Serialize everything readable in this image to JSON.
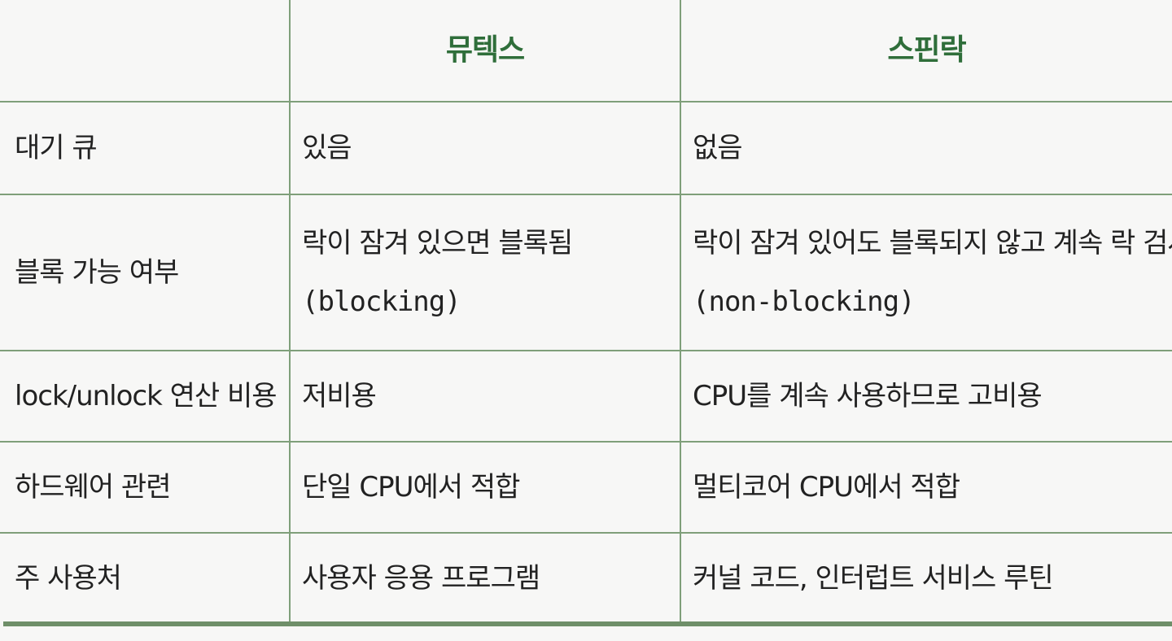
{
  "table": {
    "headers": [
      "",
      "뮤텍스",
      "스핀락"
    ],
    "rows": [
      {
        "label": "대기 큐",
        "mutex": [
          "있음"
        ],
        "spinlock": [
          "없음"
        ]
      },
      {
        "label": "블록 가능 여부",
        "mutex": [
          "락이 잠겨 있으면 블록됨",
          "(blocking)"
        ],
        "spinlock": [
          "락이 잠겨 있어도 블록되지 않고 계속 락 검사",
          "(non-blocking)"
        ]
      },
      {
        "label": "lock/unlock 연산 비용",
        "mutex": [
          "저비용"
        ],
        "spinlock": [
          "CPU를 계속 사용하므로 고비용"
        ]
      },
      {
        "label": "하드웨어 관련",
        "mutex": [
          "단일 CPU에서 적합"
        ],
        "spinlock": [
          "멀티코어 CPU에서 적합"
        ]
      },
      {
        "label": "주 사용처",
        "mutex": [
          "사용자 응용 프로그램"
        ],
        "spinlock": [
          "커널 코드, 인터럽트 서비스 루틴"
        ]
      }
    ]
  },
  "colors": {
    "header_text": "#2f6e3a",
    "rule": "#7f9f7a",
    "bottom_rule": "#6f8f69",
    "background": "#f7f7f6"
  }
}
